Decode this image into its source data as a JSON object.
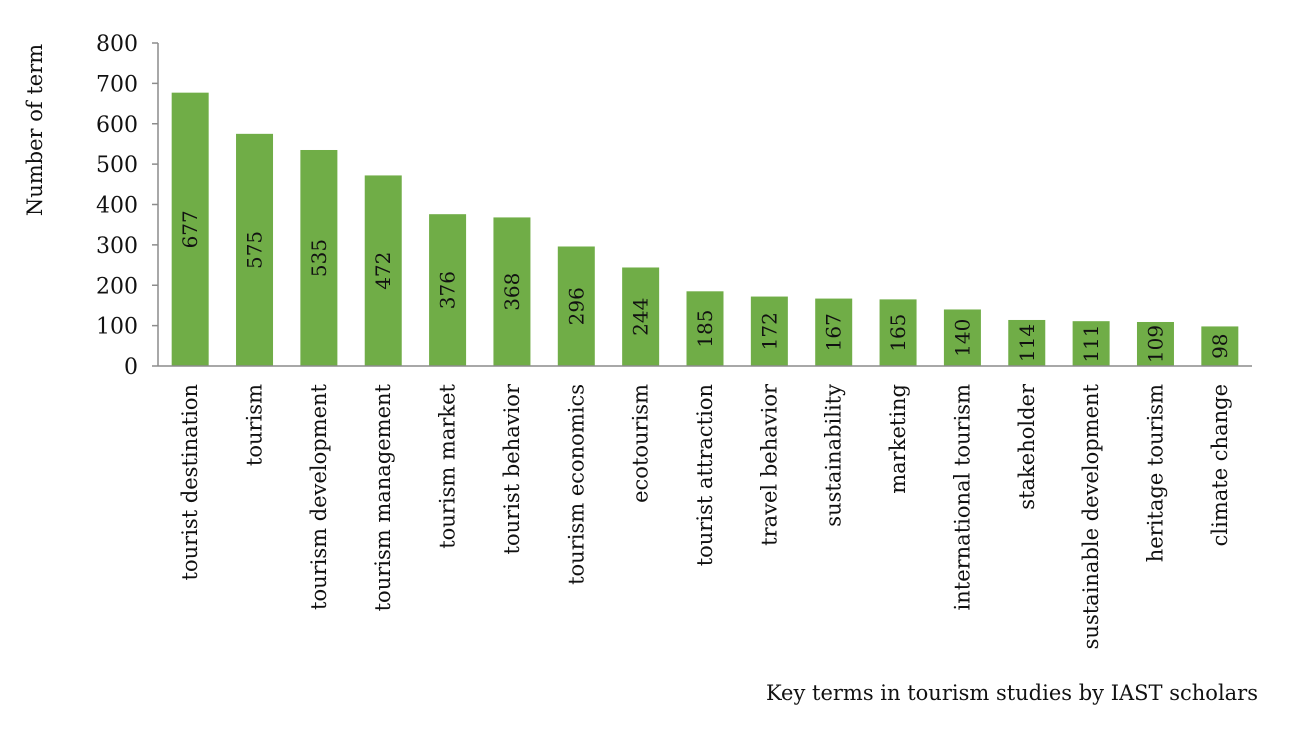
{
  "chart_data": {
    "type": "bar",
    "title": "",
    "xlabel": "Key terms in tourism studies by IAST scholars",
    "ylabel": "Number of term",
    "ylim": [
      0,
      800
    ],
    "yticks": [
      0,
      100,
      200,
      300,
      400,
      500,
      600,
      700,
      800
    ],
    "grid": false,
    "bar_color": "#70ad47",
    "categories": [
      "tourist destination",
      "tourism",
      "tourism development",
      "tourism management",
      "tourism market",
      "tourist behavior",
      "tourism economics",
      "ecotourism",
      "tourist attraction",
      "travel behavior",
      "sustainability",
      "marketing",
      "international tourism",
      "stakeholder",
      "sustainable development",
      "heritage tourism",
      "climate change"
    ],
    "values": [
      677,
      575,
      535,
      472,
      376,
      368,
      296,
      244,
      185,
      172,
      167,
      165,
      140,
      114,
      111,
      109,
      98
    ]
  }
}
